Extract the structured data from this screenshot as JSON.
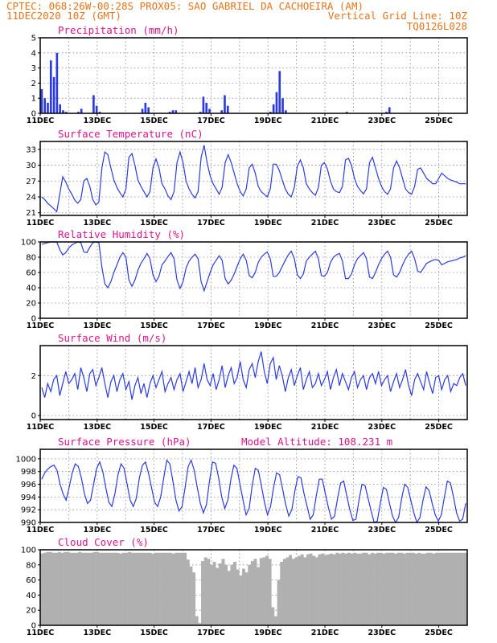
{
  "header": {
    "line1_left": "CPTEC:  068:26W-00:28S  PROX05: SAO GABRIEL DA CACHOEIRA (AM)",
    "line2_left": "11DEC2020 10Z (GMT)",
    "line2_right": "Vertical Grid Line: 10Z",
    "line3_right": "TQ0126L028"
  },
  "x_ticks": [
    "11DEC",
    "13DEC",
    "15DEC",
    "17DEC",
    "19DEC",
    "21DEC",
    "23DEC",
    "25DEC"
  ],
  "colors": {
    "line": "#2b3be0",
    "bar": "#2b3be0",
    "cloud": "#b0b0b0",
    "title": "#e0148a",
    "header": "#e8741c"
  },
  "panels": [
    {
      "key": "precip",
      "title": "Precipitation (mm/h)",
      "extra": "",
      "yticks": [
        "0",
        "1",
        "2",
        "3",
        "4",
        "5"
      ]
    },
    {
      "key": "temp",
      "title": "Surface Temperature (nC)",
      "extra": "",
      "yticks": [
        "21",
        "24",
        "27",
        "30",
        "33"
      ]
    },
    {
      "key": "rh",
      "title": "Relative Humidity (%)",
      "extra": "",
      "yticks": [
        "0",
        "20",
        "40",
        "60",
        "80",
        "100"
      ]
    },
    {
      "key": "wind",
      "title": "Surface Wind (m/s)",
      "extra": "",
      "yticks": [
        "0",
        "2"
      ]
    },
    {
      "key": "pres",
      "title": "Surface Pressure (hPa)",
      "extra": "Model Altitude: 108.231 m",
      "yticks": [
        "990",
        "992",
        "994",
        "996",
        "998",
        "1000"
      ]
    },
    {
      "key": "cloud",
      "title": "Cloud Cover (%)",
      "extra": "",
      "yticks": [
        "0",
        "20",
        "40",
        "60",
        "80",
        "100"
      ]
    }
  ],
  "chart_data": [
    {
      "type": "bar",
      "title": "Precipitation (mm/h)",
      "x_start": "11DEC2020 10Z",
      "x_end": "26DEC2020 10Z",
      "step_hours": 3,
      "ylim": [
        0,
        5
      ],
      "values": [
        1.6,
        1.0,
        0.7,
        3.5,
        2.4,
        4.0,
        0.6,
        0.2,
        0.1,
        0.0,
        0.0,
        0.0,
        0.1,
        0.3,
        0.0,
        0.0,
        0.0,
        1.2,
        0.5,
        0.1,
        0.0,
        0.0,
        0.0,
        0.0,
        0.0,
        0.0,
        0.0,
        0.0,
        0.0,
        0.0,
        0.0,
        0.0,
        0.0,
        0.3,
        0.7,
        0.4,
        0.0,
        0.0,
        0.0,
        0.0,
        0.0,
        0.0,
        0.1,
        0.2,
        0.2,
        0.0,
        0.0,
        0.0,
        0.0,
        0.0,
        0.0,
        0.0,
        0.1,
        1.1,
        0.7,
        0.3,
        0.0,
        0.0,
        0.0,
        0.2,
        1.2,
        0.5,
        0.0,
        0.0,
        0.0,
        0.0,
        0.0,
        0.0,
        0.0,
        0.0,
        0.0,
        0.0,
        0.0,
        0.0,
        0.0,
        0.1,
        0.6,
        1.4,
        2.8,
        1.0,
        0.2,
        0.0,
        0.0,
        0.0,
        0.0,
        0.0,
        0.0,
        0.0,
        0.0,
        0.0,
        0.0,
        0.0,
        0.0,
        0.0,
        0.0,
        0.0,
        0.0,
        0.0,
        0.0,
        0.0,
        0.1,
        0.0,
        0.0,
        0.0,
        0.0,
        0.0,
        0.0,
        0.0,
        0.0,
        0.0,
        0.0,
        0.0,
        0.0,
        0.1,
        0.4,
        0.0,
        0.0,
        0.0,
        0.0,
        0.0,
        0.0,
        0.0,
        0.0,
        0.0,
        0.0,
        0.0,
        0.0,
        0.0,
        0.0,
        0.0,
        0.0,
        0.0,
        0.0,
        0.0,
        0.0,
        0.0,
        0.0,
        0.0,
        0.0,
        0.0
      ]
    },
    {
      "type": "line",
      "title": "Surface Temperature (nC)",
      "x_start": "11DEC2020 10Z",
      "x_end": "26DEC2020 10Z",
      "step_hours": 3,
      "ylim": [
        20.5,
        34.5
      ],
      "values": [
        24.0,
        23.5,
        22.8,
        22.3,
        21.8,
        21.2,
        24.5,
        27.8,
        26.8,
        25.5,
        24.5,
        23.4,
        22.8,
        23.5,
        27.0,
        27.5,
        26.0,
        23.5,
        22.5,
        23.0,
        29.5,
        32.5,
        32.0,
        29.5,
        27.2,
        25.8,
        24.8,
        24.0,
        25.5,
        31.5,
        32.2,
        30.0,
        27.2,
        26.0,
        25.0,
        24.0,
        25.0,
        29.5,
        31.2,
        29.5,
        26.5,
        25.5,
        24.2,
        23.5,
        25.0,
        30.5,
        32.5,
        30.5,
        27.0,
        25.5,
        24.5,
        23.8,
        25.0,
        31.5,
        33.8,
        30.5,
        28.0,
        26.5,
        25.5,
        24.5,
        25.8,
        30.5,
        32.0,
        30.5,
        28.5,
        26.5,
        25.0,
        24.2,
        25.5,
        29.5,
        30.2,
        28.5,
        26.0,
        25.0,
        24.5,
        24.0,
        25.5,
        30.2,
        30.2,
        29.0,
        27.2,
        25.5,
        24.5,
        24.0,
        25.8,
        29.8,
        31.0,
        29.5,
        26.5,
        25.5,
        24.8,
        24.3,
        25.8,
        30.0,
        30.5,
        29.3,
        27.0,
        25.5,
        25.0,
        24.8,
        26.0,
        31.0,
        31.3,
        30.0,
        27.5,
        26.0,
        25.2,
        24.6,
        25.5,
        30.5,
        31.5,
        29.5,
        27.5,
        26.0,
        25.0,
        24.5,
        25.5,
        29.5,
        30.8,
        29.5,
        27.5,
        25.5,
        24.8,
        24.5,
        26.0,
        29.2,
        29.5,
        28.5,
        27.5,
        27.0,
        26.5,
        26.5,
        27.5,
        28.5,
        28.0,
        27.5,
        27.2,
        27.0,
        26.8,
        26.5,
        26.5,
        26.5
      ]
    },
    {
      "type": "line",
      "title": "Relative Humidity (%)",
      "x_start": "11DEC2020 10Z",
      "x_end": "26DEC2020 10Z",
      "step_hours": 3,
      "ylim": [
        0,
        100
      ],
      "values": [
        97,
        98,
        99,
        100,
        100,
        100,
        90,
        83,
        86,
        92,
        96,
        98,
        100,
        99,
        87,
        86,
        93,
        99,
        100,
        99,
        67,
        45,
        40,
        48,
        60,
        70,
        80,
        86,
        80,
        50,
        42,
        50,
        63,
        72,
        78,
        85,
        78,
        57,
        48,
        55,
        70,
        75,
        81,
        86,
        78,
        50,
        39,
        48,
        66,
        75,
        80,
        84,
        78,
        48,
        36,
        48,
        60,
        70,
        76,
        82,
        76,
        52,
        45,
        50,
        58,
        68,
        78,
        84,
        76,
        56,
        53,
        60,
        73,
        80,
        84,
        87,
        78,
        55,
        55,
        60,
        68,
        76,
        83,
        88,
        78,
        57,
        52,
        58,
        75,
        80,
        84,
        88,
        78,
        56,
        55,
        60,
        73,
        80,
        83,
        85,
        75,
        52,
        52,
        58,
        70,
        78,
        82,
        86,
        78,
        54,
        52,
        60,
        70,
        78,
        84,
        88,
        80,
        57,
        54,
        60,
        70,
        78,
        84,
        88,
        78,
        62,
        60,
        66,
        72,
        74,
        76,
        77,
        76,
        70,
        72,
        74,
        75,
        76,
        77,
        79,
        80,
        82
      ]
    },
    {
      "type": "line",
      "title": "Surface Wind (m/s)",
      "x_start": "11DEC2020 10Z",
      "x_end": "26DEC2020 10Z",
      "step_hours": 3,
      "ylim": [
        -0.2,
        3.5
      ],
      "values": [
        1.4,
        0.9,
        1.6,
        1.2,
        1.8,
        2.0,
        1.0,
        1.6,
        2.2,
        1.6,
        1.8,
        2.1,
        1.3,
        2.4,
        1.9,
        1.2,
        2.1,
        2.3,
        1.5,
        1.9,
        2.4,
        1.6,
        0.9,
        1.7,
        2.0,
        1.2,
        1.8,
        2.1,
        1.3,
        1.7,
        0.8,
        1.5,
        1.9,
        1.1,
        1.6,
        0.9,
        1.6,
        2.0,
        1.4,
        1.8,
        2.2,
        1.2,
        1.6,
        1.9,
        1.3,
        1.8,
        2.1,
        1.2,
        1.7,
        2.2,
        1.6,
        2.4,
        1.4,
        1.8,
        2.6,
        1.8,
        1.5,
        2.1,
        1.3,
        1.8,
        2.5,
        1.4,
        2.0,
        2.4,
        1.6,
        1.9,
        2.7,
        1.8,
        1.4,
        2.3,
        2.6,
        1.9,
        2.7,
        3.2,
        2.2,
        1.6,
        2.6,
        2.9,
        1.8,
        2.5,
        2.0,
        1.2,
        1.9,
        2.3,
        1.5,
        2.0,
        2.4,
        1.3,
        1.8,
        2.2,
        1.4,
        1.6,
        2.1,
        1.5,
        1.8,
        2.2,
        1.3,
        1.9,
        2.3,
        1.5,
        2.1,
        1.7,
        1.3,
        1.9,
        2.2,
        1.4,
        1.8,
        2.0,
        1.3,
        1.9,
        2.1,
        1.6,
        2.2,
        1.5,
        1.8,
        2.0,
        1.2,
        1.7,
        2.1,
        1.4,
        1.8,
        2.3,
        1.5,
        1.0,
        1.8,
        2.1,
        1.7,
        1.3,
        2.2,
        1.6,
        1.1,
        1.9,
        2.0,
        1.3,
        1.8,
        2.0,
        1.2,
        1.6,
        1.5,
        1.9,
        2.1,
        1.5
      ]
    },
    {
      "type": "line",
      "title": "Surface Pressure (hPa)",
      "x_start": "11DEC2020 10Z",
      "x_end": "26DEC2020 10Z",
      "step_hours": 3,
      "ylim": [
        990,
        1001.5
      ],
      "values": [
        996.8,
        997.8,
        998.4,
        998.8,
        999.0,
        998.2,
        996.0,
        994.5,
        993.5,
        995.5,
        997.8,
        999.2,
        998.8,
        997.0,
        994.5,
        993.0,
        993.5,
        996.0,
        998.5,
        999.5,
        998.0,
        995.5,
        993.2,
        992.5,
        994.5,
        997.5,
        999.2,
        998.5,
        996.0,
        993.5,
        992.5,
        993.8,
        997.0,
        999.0,
        999.5,
        997.8,
        995.5,
        993.2,
        992.5,
        994.0,
        997.0,
        999.8,
        999.2,
        996.5,
        993.5,
        991.8,
        992.5,
        995.5,
        998.8,
        999.8,
        998.2,
        995.5,
        993.0,
        991.5,
        992.8,
        996.5,
        999.5,
        999.3,
        997.0,
        994.0,
        992.2,
        993.5,
        996.8,
        999.0,
        998.5,
        996.0,
        993.5,
        991.2,
        992.2,
        995.8,
        998.5,
        998.2,
        995.8,
        993.2,
        991.2,
        992.5,
        995.5,
        997.8,
        997.5,
        995.2,
        992.8,
        991.0,
        992.0,
        995.0,
        997.2,
        997.0,
        994.5,
        992.5,
        990.5,
        991.2,
        994.2,
        996.8,
        996.8,
        994.5,
        992.3,
        990.5,
        991.0,
        993.8,
        996.2,
        996.5,
        994.2,
        992.0,
        990.3,
        990.5,
        993.5,
        996.0,
        995.8,
        993.8,
        991.8,
        990.0,
        990.2,
        993.0,
        995.5,
        995.2,
        993.0,
        991.0,
        990.0,
        990.8,
        993.8,
        996.0,
        995.5,
        993.5,
        991.5,
        990.0,
        990.8,
        993.5,
        995.6,
        995.0,
        993.0,
        991.2,
        990.2,
        991.2,
        994.0,
        996.5,
        996.2,
        994.0,
        991.5,
        990.2,
        990.5,
        993.0
      ]
    },
    {
      "type": "area",
      "title": "Cloud Cover (%)",
      "x_start": "11DEC2020 10Z",
      "x_end": "26DEC2020 10Z",
      "step_hours": 3,
      "ylim": [
        0,
        100
      ],
      "values": [
        95,
        96,
        97,
        97,
        96,
        96,
        97,
        96,
        97,
        97,
        96,
        96,
        96,
        97,
        96,
        96,
        96,
        96,
        97,
        97,
        96,
        96,
        96,
        96,
        96,
        96,
        96,
        95,
        96,
        96,
        97,
        96,
        96,
        96,
        96,
        96,
        96,
        96,
        95,
        96,
        96,
        96,
        96,
        96,
        96,
        95,
        96,
        96,
        96,
        96,
        87,
        78,
        70,
        12,
        3,
        85,
        90,
        88,
        80,
        84,
        76,
        82,
        88,
        80,
        72,
        80,
        84,
        74,
        66,
        75,
        70,
        80,
        85,
        88,
        77,
        89,
        90,
        92,
        88,
        24,
        12,
        60,
        84,
        88,
        90,
        93,
        88,
        90,
        92,
        94,
        90,
        94,
        95,
        92,
        90,
        94,
        95,
        93,
        94,
        95,
        94,
        96,
        95,
        96,
        95,
        96,
        95,
        96,
        95,
        95,
        96,
        96,
        94,
        96,
        95,
        96,
        96,
        95,
        96,
        96,
        96,
        95,
        96,
        96,
        95,
        96,
        96,
        96,
        95,
        96,
        95,
        95,
        96,
        96,
        95,
        96,
        96,
        96,
        96,
        96,
        96,
        96,
        96,
        96,
        96,
        96
      ]
    }
  ]
}
